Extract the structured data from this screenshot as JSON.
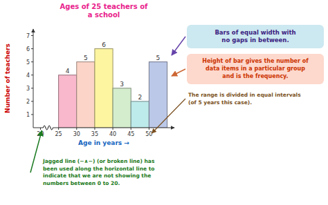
{
  "chart_data": {
    "type": "histogram",
    "title": "Ages of 25 teachers of\na school",
    "x_label": "Age in years →",
    "y_label": "Number of teachers",
    "bins": [
      25,
      30,
      35,
      40,
      45,
      50,
      55
    ],
    "values": [
      4,
      5,
      6,
      3,
      2,
      5
    ],
    "colors": [
      "#f9b8cc",
      "#fdd5c8",
      "#fdf5a0",
      "#d4edcd",
      "#bdeaea",
      "#bbc8e8"
    ],
    "xlim": [
      18,
      57
    ],
    "ylim": [
      0,
      7.5
    ],
    "xticks": [
      20,
      25,
      30,
      35,
      40,
      45,
      50
    ],
    "yticks": [
      1,
      2,
      3,
      4,
      5,
      6,
      7
    ],
    "data_labels": true,
    "grid": false,
    "annotations": [
      "Bars of equal width with\nno gaps in between.",
      "Height of bar gives the number of\ndata items in a particular group\nand is the frequency.",
      "The range is divided in equal intervals\n(of 5 years this case).",
      "Jagged line (∼∧∼) (or broken line) has\nbeen used along the horizontal line to\nindicate that we are not showing the\nnumbers between 0 to 20."
    ]
  }
}
